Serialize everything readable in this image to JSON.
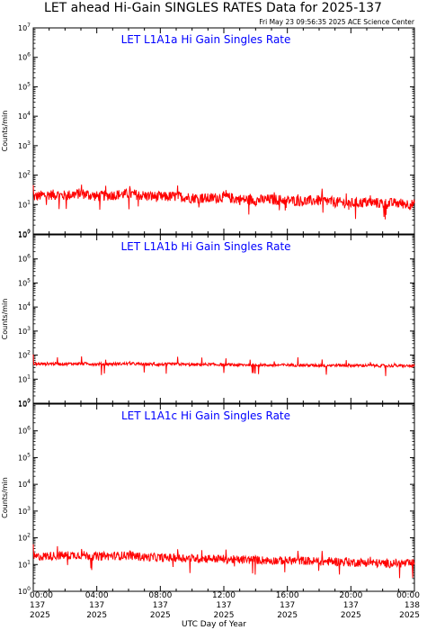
{
  "title": "LET ahead Hi-Gain SINGLES RATES Data for 2025-137",
  "timestamp": "Fri May 23 09:56:35 2025 ACE Science Center",
  "xlabel": "UTC Day of Year",
  "ylabel": "Counts/min",
  "colors": {
    "trace": "#ff0000",
    "panel_title": "#0000ff",
    "axes": "#000000"
  },
  "x_ticks": [
    {
      "time": "00:00",
      "doy": "137",
      "year": "2025"
    },
    {
      "time": "04:00",
      "doy": "137",
      "year": "2025"
    },
    {
      "time": "08:00",
      "doy": "137",
      "year": "2025"
    },
    {
      "time": "12:00",
      "doy": "137",
      "year": "2025"
    },
    {
      "time": "16:00",
      "doy": "137",
      "year": "2025"
    },
    {
      "time": "20:00",
      "doy": "137",
      "year": "2025"
    },
    {
      "time": "00:00",
      "doy": "138",
      "year": "2025"
    }
  ],
  "chart_data": [
    {
      "type": "line",
      "title": "LET L1A1a Hi Gain Singles Rate",
      "ylabel": "Counts/min",
      "y_scale": "log",
      "ylim": [
        1,
        10000000
      ],
      "y_ticks": [
        1,
        10,
        100,
        1000,
        10000,
        100000,
        1000000,
        10000000
      ],
      "x_range_hours": [
        0,
        24
      ],
      "x_hours": [
        0,
        1,
        2,
        3,
        4,
        5,
        6,
        7,
        8,
        9,
        10,
        11,
        12,
        13,
        14,
        15,
        16,
        17,
        18,
        19,
        20,
        21,
        22,
        23,
        24
      ],
      "values": [
        18,
        22,
        20,
        24,
        19,
        21,
        23,
        20,
        18,
        19,
        17,
        16,
        18,
        15,
        14,
        15,
        14,
        13,
        14,
        12,
        11,
        12,
        11,
        11,
        10
      ],
      "baseline": 16,
      "spread_decades": 0.18
    },
    {
      "type": "line",
      "title": "LET L1A1b Hi Gain Singles Rate",
      "ylabel": "Counts/min",
      "y_scale": "log",
      "ylim": [
        1,
        10000000
      ],
      "y_ticks": [
        1,
        10,
        100,
        1000,
        10000,
        100000,
        1000000,
        10000000
      ],
      "x_range_hours": [
        0,
        24
      ],
      "x_hours": [
        0,
        1,
        2,
        3,
        4,
        5,
        6,
        7,
        8,
        9,
        10,
        11,
        12,
        13,
        14,
        15,
        16,
        17,
        18,
        19,
        20,
        21,
        22,
        23,
        24
      ],
      "values": [
        42,
        44,
        43,
        45,
        42,
        43,
        44,
        42,
        41,
        42,
        40,
        41,
        40,
        39,
        40,
        38,
        39,
        38,
        37,
        38,
        37,
        37,
        36,
        36,
        35
      ],
      "baseline": 40,
      "spread_decades": 0.06
    },
    {
      "type": "line",
      "title": "LET L1A1c Hi Gain Singles Rate",
      "ylabel": "Counts/min",
      "y_scale": "log",
      "ylim": [
        1,
        10000000
      ],
      "y_ticks": [
        1,
        10,
        100,
        1000,
        10000,
        100000,
        1000000,
        10000000
      ],
      "x_range_hours": [
        0,
        24
      ],
      "x_hours": [
        0,
        1,
        2,
        3,
        4,
        5,
        6,
        7,
        8,
        9,
        10,
        11,
        12,
        13,
        14,
        15,
        16,
        17,
        18,
        19,
        20,
        21,
        22,
        23,
        24
      ],
      "values": [
        19,
        21,
        22,
        23,
        20,
        21,
        22,
        19,
        18,
        18,
        17,
        17,
        16,
        15,
        15,
        14,
        14,
        14,
        13,
        13,
        12,
        12,
        11,
        11,
        11
      ],
      "baseline": 16,
      "spread_decades": 0.16
    }
  ]
}
